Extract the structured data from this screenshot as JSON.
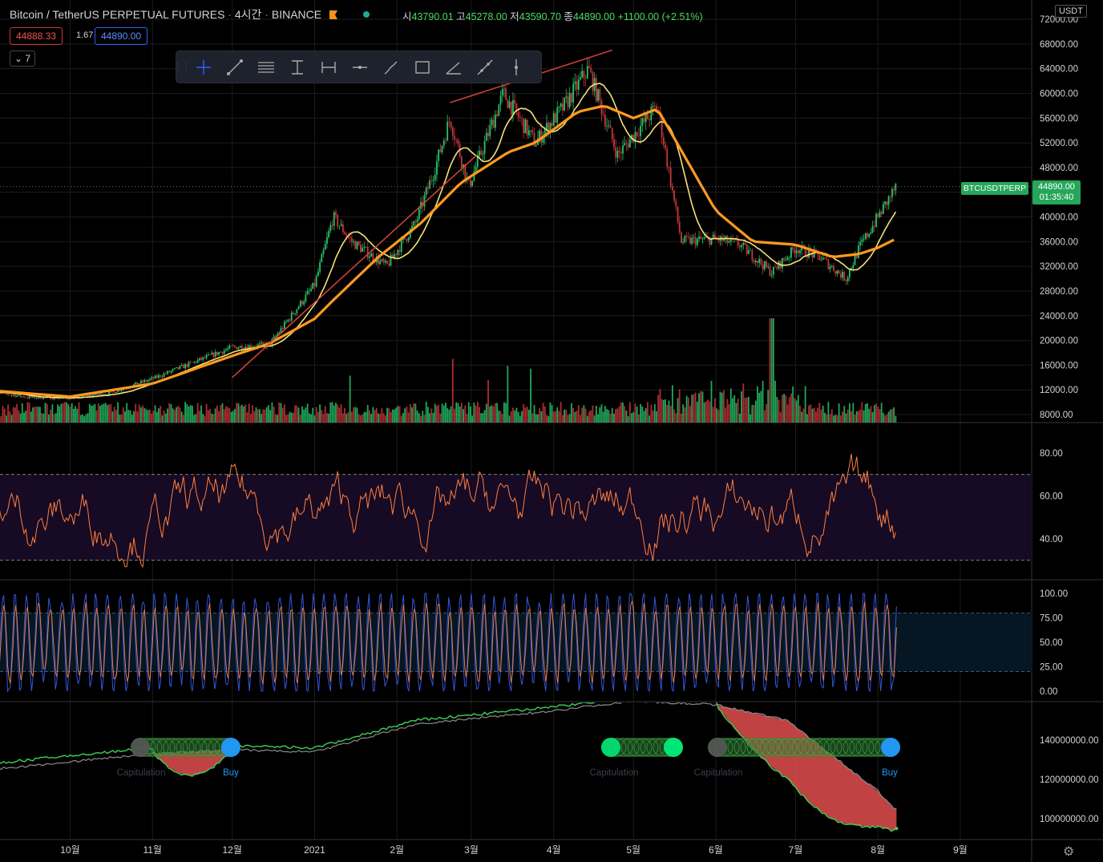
{
  "header": {
    "symbol": "Bitcoin / TetherUS PERPETUAL FUTURES",
    "interval": "4시간",
    "exchange": "BINANCE",
    "open_label": "시",
    "open": "43790.01",
    "high_label": "고",
    "high": "45278.00",
    "low_label": "저",
    "low": "43590.70",
    "close_label": "종",
    "close": "44890.00",
    "change": "+1100.00 (+2.51%)"
  },
  "quote": {
    "bid": "44888.33",
    "spread": "1.67",
    "ask": "44890.00"
  },
  "indicators_collapsed_count": "7",
  "toolbar": {
    "tools": [
      "crosshair-icon",
      "trend-line-icon",
      "horizontal-lines-icon",
      "price-range-icon",
      "date-range-icon",
      "horizontal-ray-icon",
      "brush-icon",
      "rectangle-icon",
      "angle-line-icon",
      "extended-line-icon",
      "vertical-line-icon"
    ]
  },
  "price_axis": {
    "currency": "USDT",
    "tag_symbol": "BTCUSDTPERP",
    "tag_price": "44890.00",
    "tag_countdown": "01:35:40"
  },
  "colors": {
    "up": "#26c46b",
    "down": "#c9363b",
    "sma_fast": "#f5e17a",
    "sma_slow": "#ff9a1f",
    "trend": "#d8433b",
    "rsi": "#ff7f3f",
    "stoch_k": "#3455db",
    "stoch_d": "#e07b4c",
    "grid": "#1c1c1c",
    "cvd_up": "#3bd25a",
    "cvd_base": "#8c8c8c",
    "cvd_fill_down": "#e34e4e",
    "buy": "#2196f3"
  },
  "chart_data": [
    {
      "type": "line",
      "title": "",
      "x_ticks": [
        "10월",
        "11월",
        "12월",
        "2021",
        "2월",
        "3월",
        "4월",
        "5월",
        "6월",
        "7월",
        "8월",
        "9월"
      ],
      "y_ticks": [
        "72000.00",
        "68000.00",
        "64000.00",
        "60000.00",
        "56000.00",
        "52000.00",
        "48000.00",
        "44000.00",
        "40000.00",
        "36000.00",
        "32000.00",
        "28000.00",
        "24000.00",
        "20000.00",
        "16000.00",
        "12000.00",
        "8000.00"
      ],
      "ylim": [
        7000,
        73000
      ],
      "series": [
        {
          "x": [
            "9/1",
            "9/15",
            "10/1",
            "10/15",
            "11/1",
            "11/15",
            "12/1",
            "12/15",
            "1/1",
            "1/8",
            "1/15",
            "1/28",
            "2/8",
            "2/15",
            "2/21",
            "2/28",
            "3/13",
            "3/25",
            "4/5",
            "4/14",
            "4/25",
            "5/10",
            "5/19",
            "6/1",
            "6/10",
            "6/22",
            "7/1",
            "7/10",
            "7/20",
            "7/25",
            "8/1",
            "8/8"
          ],
          "values": [
            11700,
            10800,
            10700,
            11400,
            13800,
            16200,
            18900,
            19300,
            29000,
            40000,
            36000,
            32000,
            39000,
            47500,
            56000,
            45000,
            60000,
            52000,
            58000,
            64000,
            50000,
            58000,
            36000,
            36500,
            35500,
            31000,
            35000,
            33500,
            30000,
            35000,
            40000,
            45000
          ]
        },
        {
          "x": [
            "9/1",
            "10/1",
            "11/1",
            "12/1",
            "12/15",
            "1/1",
            "1/8",
            "1/25",
            "2/10",
            "2/25",
            "3/15",
            "3/25",
            "4/10",
            "4/20",
            "5/1",
            "5/10",
            "5/20",
            "6/1",
            "6/15",
            "7/1",
            "7/15",
            "7/25",
            "8/1",
            "8/8"
          ],
          "values": [
            11900,
            10900,
            13000,
            17500,
            19500,
            23500,
            26500,
            33500,
            39000,
            45500,
            50500,
            52000,
            57000,
            58000,
            56000,
            57500,
            50000,
            41000,
            36000,
            35500,
            33500,
            34000,
            35000,
            36500
          ]
        }
      ],
      "annotations": [
        "trend line from Dec to Apr",
        "resistance line Feb to Apr"
      ]
    },
    {
      "type": "bar",
      "title": "volume",
      "description": "volume histogram beneath price, green up / red down, spikes mid-May and late June"
    },
    {
      "type": "line",
      "title": "",
      "y_ticks": [
        "80.00",
        "60.00",
        "40.00"
      ],
      "ylim": [
        25,
        90
      ],
      "bands": [
        30,
        70
      ]
    },
    {
      "type": "line",
      "title": "",
      "y_ticks": [
        "100.00",
        "75.00",
        "50.00",
        "25.00",
        "0.00"
      ],
      "ylim": [
        0,
        100
      ],
      "bands": [
        20,
        80
      ]
    },
    {
      "type": "area",
      "title": "",
      "y_ticks": [
        "140000000.00",
        "120000000.00",
        "100000000.00"
      ],
      "signals": [
        {
          "label": "Capitulation",
          "x": "11/1"
        },
        {
          "label": "Buy",
          "x": "12/1"
        },
        {
          "label": "Capitulation",
          "x": "5/1"
        },
        {
          "label": "Capitulation",
          "x": "6/1"
        },
        {
          "label": "Buy",
          "x": "8/1"
        }
      ]
    }
  ]
}
